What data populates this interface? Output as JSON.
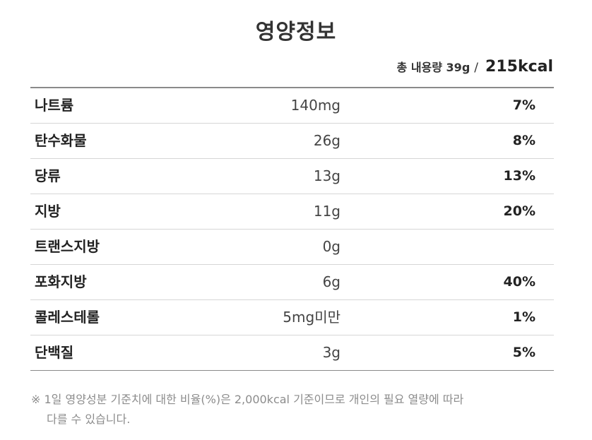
{
  "title": "영양정보",
  "summary": {
    "serving": "총 내용량 39g",
    "separator": "/",
    "calories": "215kcal"
  },
  "nutrients": [
    {
      "name": "나트륨",
      "amount": "140mg",
      "percent": "7%"
    },
    {
      "name": "탄수화물",
      "amount": "26g",
      "percent": "8%"
    },
    {
      "name": "당류",
      "amount": "13g",
      "percent": "13%"
    },
    {
      "name": "지방",
      "amount": "11g",
      "percent": "20%"
    },
    {
      "name": "트랜스지방",
      "amount": "0g",
      "percent": ""
    },
    {
      "name": "포화지방",
      "amount": "6g",
      "percent": "40%"
    },
    {
      "name": "콜레스테롤",
      "amount": "5mg미만",
      "percent": "1%"
    },
    {
      "name": "단백질",
      "amount": "3g",
      "percent": "5%"
    }
  ],
  "footnote": {
    "line1": "※ 1일 영양성분 기준치에 대한 비율(%)은 2,000kcal 기준이므로 개인의 필요 열량에 따라",
    "line2": "다를 수 있습니다."
  }
}
